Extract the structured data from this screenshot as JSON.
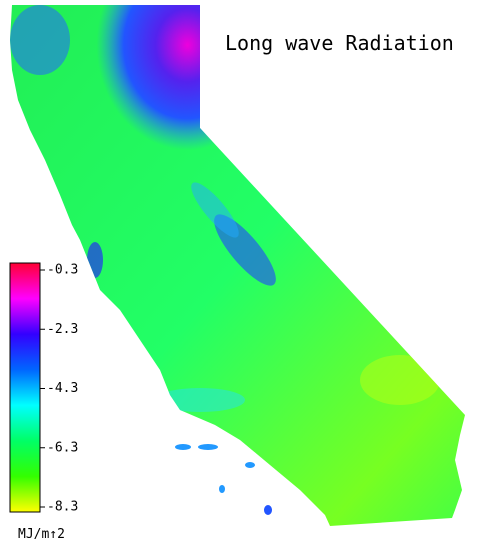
{
  "map": {
    "title": "Long wave Radiation",
    "colorbar": {
      "range": [
        -0.3,
        -8.3
      ],
      "ticks": [
        -0.3,
        -2.3,
        -4.3,
        -6.3,
        -8.3
      ],
      "colors": [
        "#ff0033",
        "#ff00ff",
        "#3300ff",
        "#0066ff",
        "#00ffff",
        "#00ff66",
        "#33ff00",
        "#ffff00"
      ],
      "unit": "MJ/m↑2"
    }
  }
}
